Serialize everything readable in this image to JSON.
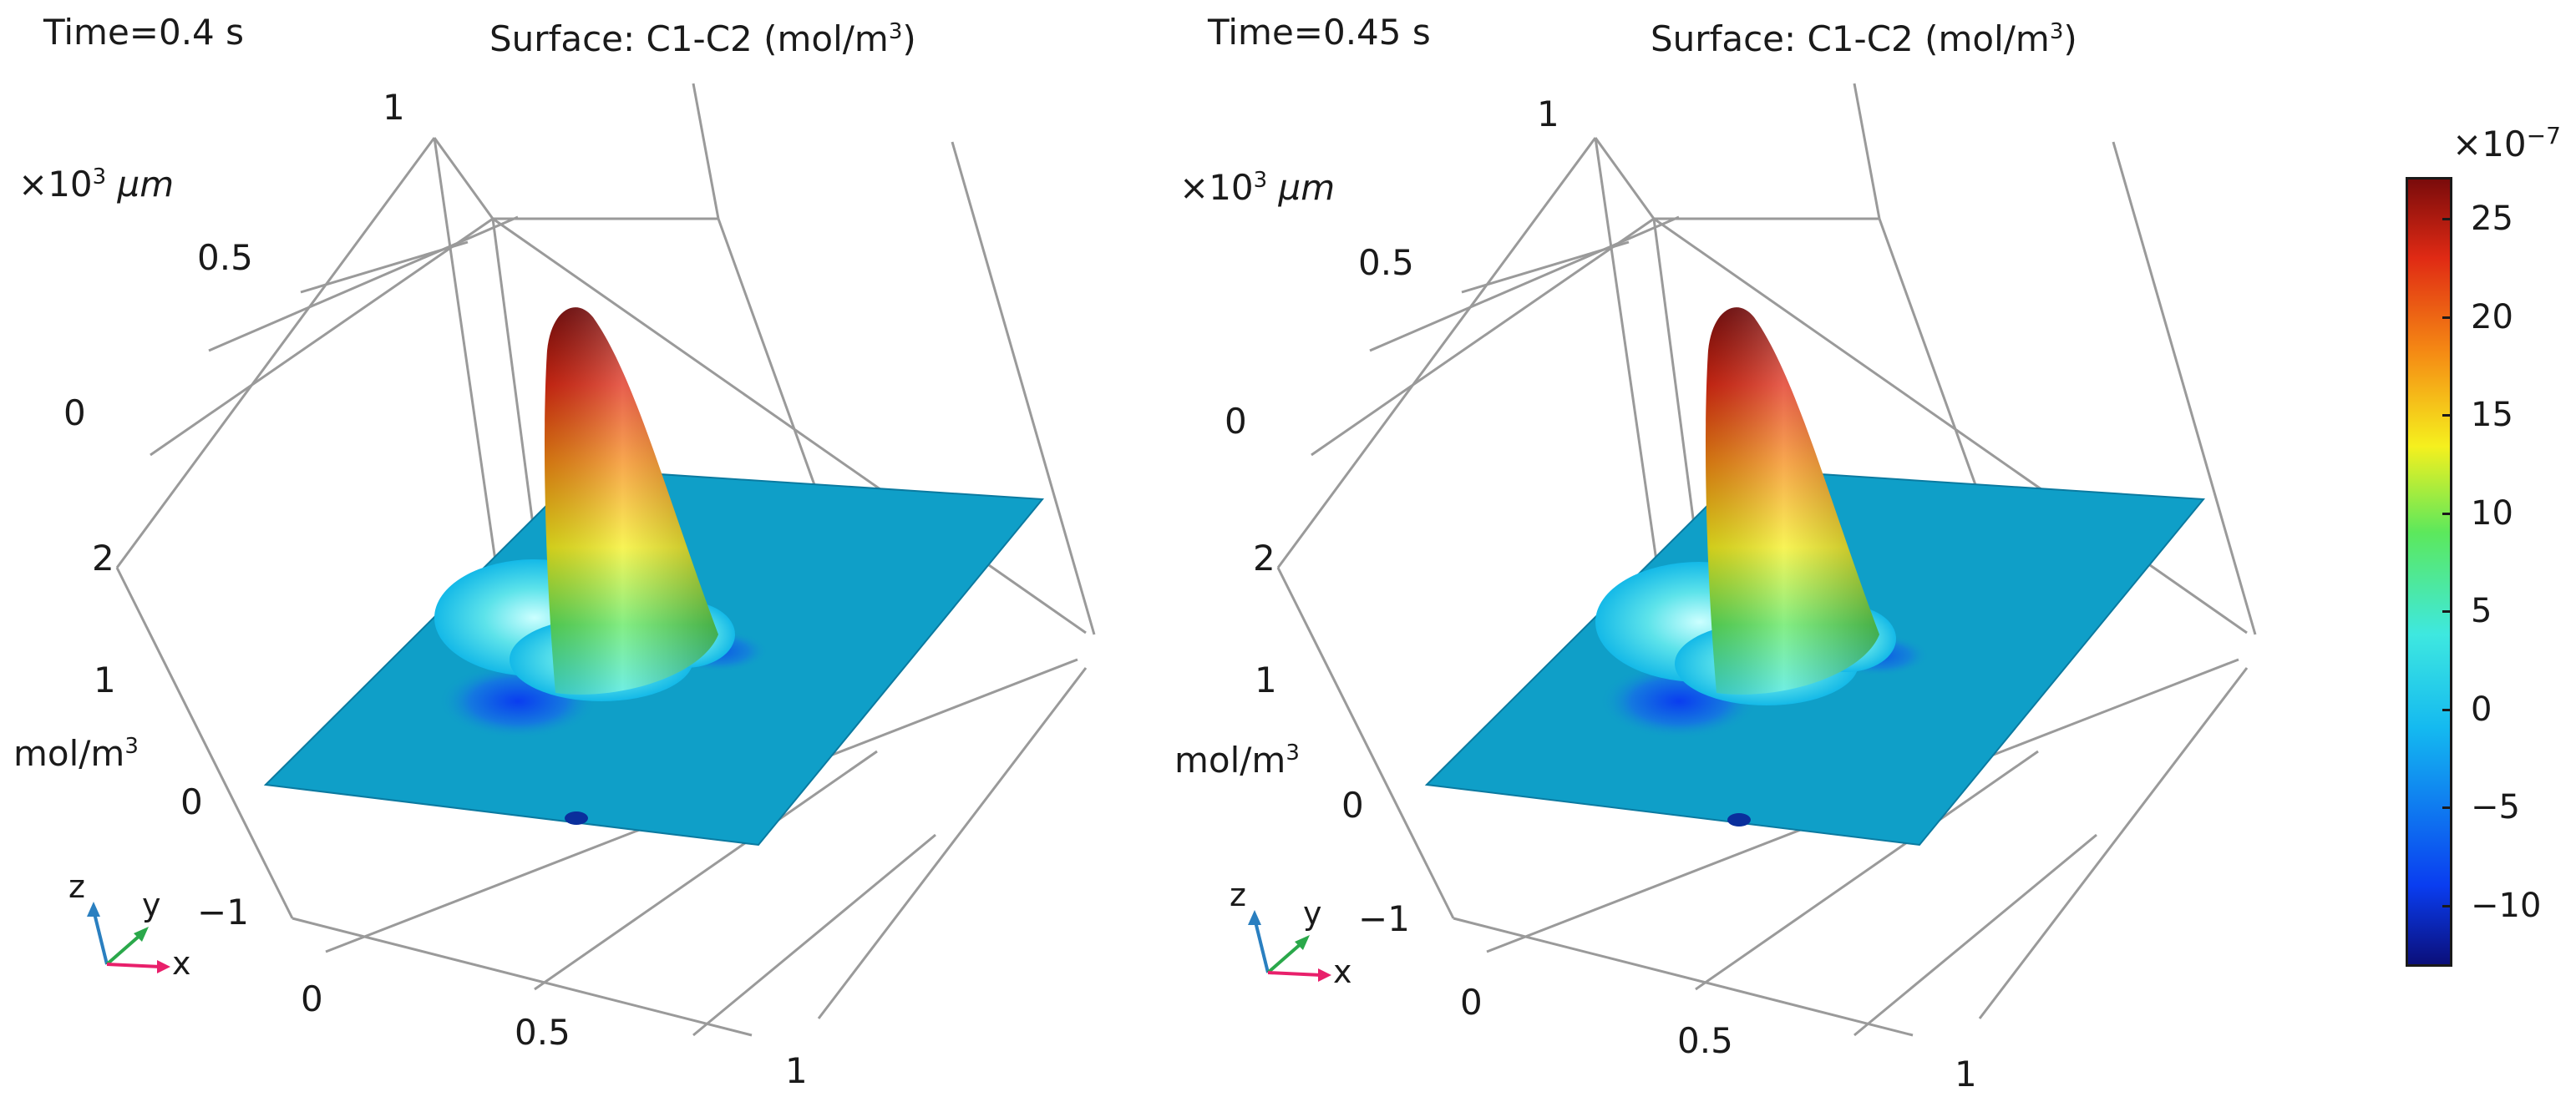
{
  "colors": {
    "plane": "#0f9fc8",
    "plane_edge": "#0b7aa0",
    "colormap": [
      "#0b0f7a",
      "#0a3df0",
      "#14b9f0",
      "#3ee8e0",
      "#5ce85c",
      "#f5f01e",
      "#f58a14",
      "#e02a14",
      "#7a0b0b"
    ]
  },
  "chart_data": [
    {
      "type": "surface3d",
      "time_label": "Time=0.4 s",
      "title_prefix": "Surface: C1-C2 (mol/m",
      "title_sup": "3",
      "title_suffix": ")",
      "length_unit_prefix": "×10",
      "length_unit_sup": "3",
      "length_unit_suffix": " μm",
      "z_unit_prefix": "mol/m",
      "z_unit_sup": "3",
      "y_ticks": [
        "1",
        "0.5",
        "0"
      ],
      "z_ticks": [
        "2",
        "1",
        "0",
        "−1"
      ],
      "x_ticks": [
        "0",
        "0.5",
        "1"
      ],
      "triad": {
        "x": "x",
        "y": "y",
        "z": "z"
      },
      "peak_value": 25
    },
    {
      "type": "surface3d",
      "time_label": "Time=0.45 s",
      "title_prefix": "Surface: C1-C2 (mol/m",
      "title_sup": "3",
      "title_suffix": ")",
      "length_unit_prefix": "×10",
      "length_unit_sup": "3",
      "length_unit_suffix": " μm",
      "z_unit_prefix": "mol/m",
      "z_unit_sup": "3",
      "y_ticks": [
        "1",
        "0.5",
        "0"
      ],
      "z_ticks": [
        "2",
        "1",
        "0",
        "−1"
      ],
      "x_ticks": [
        "0",
        "0.5",
        "1"
      ],
      "triad": {
        "x": "x",
        "y": "y",
        "z": "z"
      },
      "peak_value": 25
    }
  ],
  "colorbar": {
    "exponent_prefix": "×10",
    "exponent_sup": "−7",
    "min": -13,
    "max": 27,
    "ticks": [
      "25",
      "20",
      "15",
      "10",
      "5",
      "0",
      "−5",
      "−10"
    ],
    "tick_values": [
      25,
      20,
      15,
      10,
      5,
      0,
      -5,
      -10
    ]
  }
}
